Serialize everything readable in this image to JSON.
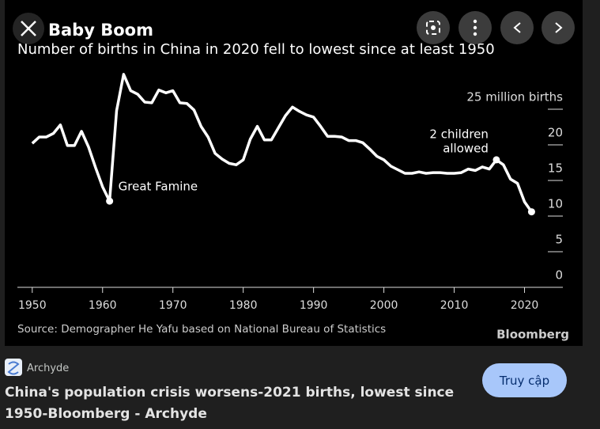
{
  "chart_data": {
    "type": "line",
    "title": "Baby Boom",
    "subtitle": "Number of births in China in 2020 fell to lowest since at least 1950",
    "source": "Source: Demographer He Yafu based on National Bureau of Statistics",
    "logo": "Bloomberg",
    "color": "#ffffff",
    "x": [
      1950,
      1951,
      1952,
      1953,
      1954,
      1955,
      1956,
      1957,
      1958,
      1959,
      1960,
      1961,
      1962,
      1963,
      1964,
      1965,
      1966,
      1967,
      1968,
      1969,
      1970,
      1971,
      1972,
      1973,
      1974,
      1975,
      1976,
      1977,
      1978,
      1979,
      1980,
      1981,
      1982,
      1983,
      1984,
      1985,
      1986,
      1987,
      1988,
      1989,
      1990,
      1991,
      1992,
      1993,
      1994,
      1995,
      1996,
      1997,
      1998,
      1999,
      2000,
      2001,
      2002,
      2003,
      2004,
      2005,
      2006,
      2007,
      2008,
      2009,
      2010,
      2011,
      2012,
      2013,
      2014,
      2015,
      2016,
      2017,
      2018,
      2019,
      2020,
      2021
    ],
    "values": [
      20.2,
      21.1,
      21.1,
      21.6,
      22.8,
      19.9,
      19.9,
      21.9,
      19.7,
      16.8,
      14.1,
      12.1,
      24.8,
      29.9,
      27.6,
      27.1,
      26.0,
      25.9,
      27.7,
      27.3,
      27.6,
      25.9,
      25.8,
      24.9,
      22.6,
      21.1,
      18.8,
      18.0,
      17.4,
      17.2,
      17.9,
      20.8,
      22.6,
      20.7,
      20.7,
      22.4,
      24.1,
      25.3,
      24.7,
      24.2,
      23.9,
      22.6,
      21.2,
      21.2,
      21.1,
      20.6,
      20.6,
      20.3,
      19.4,
      18.4,
      17.9,
      17.0,
      16.5,
      16.0,
      16.0,
      16.2,
      16.0,
      16.1,
      16.1,
      16.0,
      16.0,
      16.1,
      16.6,
      16.4,
      16.9,
      16.6,
      17.9,
      17.2,
      15.2,
      14.6,
      12.0,
      10.6
    ],
    "point_labels": [
      null,
      null,
      null,
      null,
      null,
      null,
      null,
      null,
      null,
      null,
      null,
      [
        "Great Famine"
      ],
      null,
      null,
      null,
      null,
      null,
      null,
      null,
      null,
      null,
      null,
      null,
      null,
      null,
      null,
      null,
      null,
      null,
      null,
      null,
      null,
      null,
      null,
      null,
      null,
      null,
      null,
      null,
      null,
      null,
      null,
      null,
      null,
      null,
      null,
      null,
      null,
      null,
      null,
      null,
      null,
      null,
      null,
      null,
      null,
      null,
      null,
      null,
      null,
      null,
      null,
      null,
      null,
      null,
      null,
      [
        "2 children",
        "allowed"
      ],
      null,
      null,
      null,
      null,
      null
    ],
    "xlim": [
      1948,
      2025
    ],
    "xticks": [
      1950,
      1960,
      1970,
      1980,
      1990,
      2000,
      2010,
      2020
    ],
    "ylim": [
      0,
      30
    ],
    "yticks": [
      0,
      5,
      10,
      15,
      20,
      {
        "value": 25,
        "label": "25 million births"
      }
    ]
  },
  "result": {
    "site": "Archyde",
    "caption": "China's population crisis worsens-2021 births, lowest since 1950-Bloomberg - Archyde",
    "button": "Truy cập"
  }
}
